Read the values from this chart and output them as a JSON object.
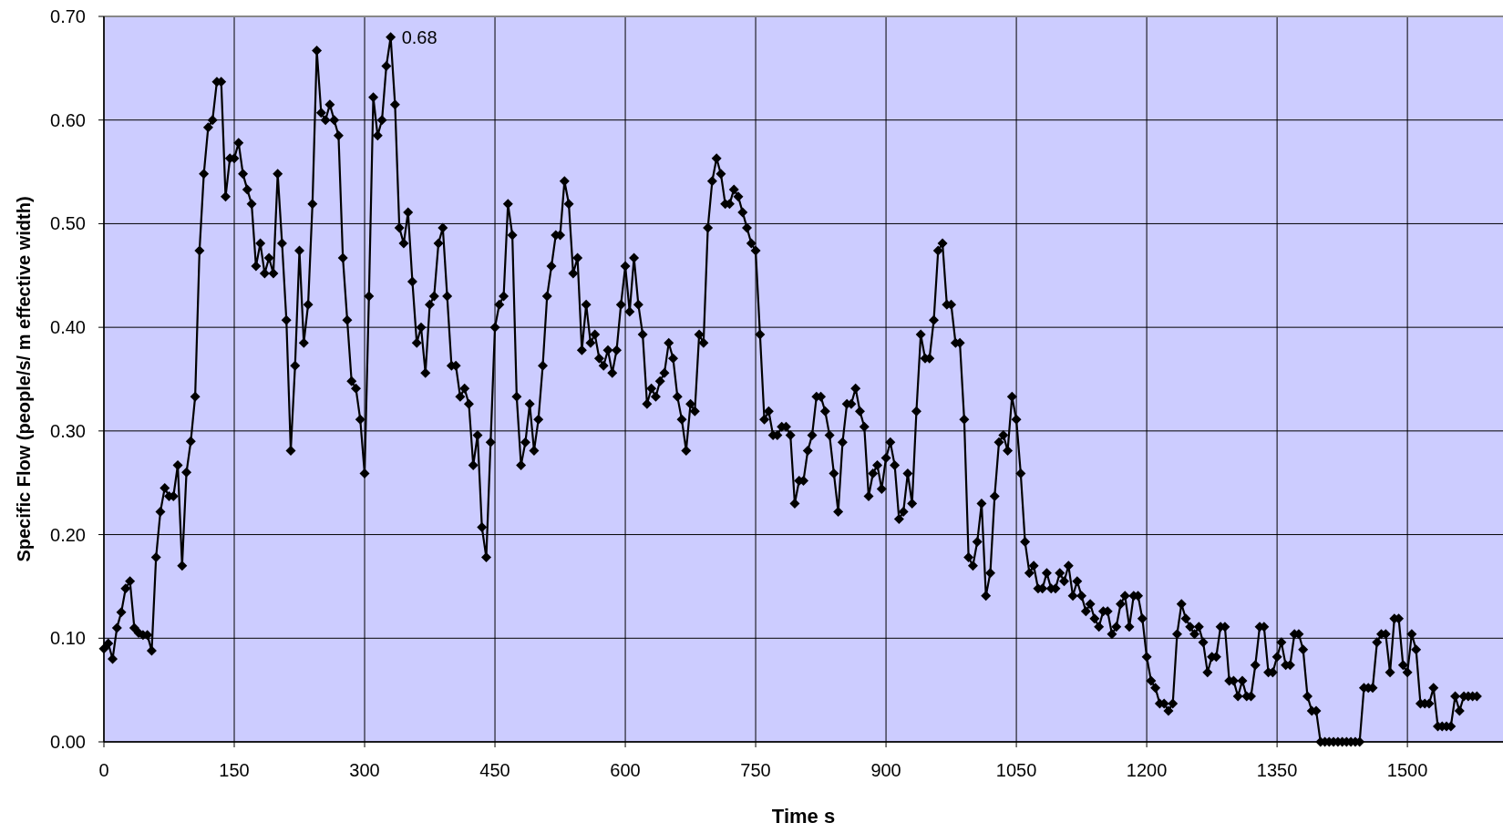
{
  "chart_data": {
    "type": "line",
    "xlabel": "Time s",
    "ylabel": "Specific Flow (people/s/ m effective width)",
    "xlim": [
      0,
      1610
    ],
    "xticks": [
      0,
      150,
      300,
      450,
      600,
      750,
      900,
      1050,
      1200,
      1350,
      1500
    ],
    "ylim": [
      0,
      0.7
    ],
    "yticks": [
      {
        "value": 0,
        "label": "0.00"
      },
      {
        "value": 0.1,
        "label": "0.10"
      },
      {
        "value": 0.2,
        "label": "0.20"
      },
      {
        "value": 0.3,
        "label": "0.30"
      },
      {
        "value": 0.4,
        "label": "0.40"
      },
      {
        "value": 0.5,
        "label": "0.50"
      },
      {
        "value": 0.6,
        "label": "0.60"
      },
      {
        "value": 0.7,
        "label": "0.70"
      }
    ],
    "grid": true,
    "marker": "diamond",
    "line_style": "solid",
    "annotations": [
      {
        "text": "0.68",
        "x": 330,
        "y": 0.68
      }
    ],
    "x": [
      0,
      5,
      10,
      15,
      20,
      25,
      30,
      35,
      40,
      45,
      50,
      55,
      60,
      65,
      70,
      75,
      80,
      85,
      90,
      95,
      100,
      105,
      110,
      115,
      120,
      125,
      130,
      135,
      140,
      145,
      150,
      155,
      160,
      165,
      170,
      175,
      180,
      185,
      190,
      195,
      200,
      205,
      210,
      215,
      220,
      225,
      230,
      235,
      240,
      245,
      250,
      255,
      260,
      265,
      270,
      275,
      280,
      285,
      290,
      295,
      300,
      305,
      310,
      315,
      320,
      325,
      330,
      335,
      340,
      345,
      350,
      355,
      360,
      365,
      370,
      375,
      380,
      385,
      390,
      395,
      400,
      405,
      410,
      415,
      420,
      425,
      430,
      435,
      440,
      445,
      450,
      455,
      460,
      465,
      470,
      475,
      480,
      485,
      490,
      495,
      500,
      505,
      510,
      515,
      520,
      525,
      530,
      535,
      540,
      545,
      550,
      555,
      560,
      565,
      570,
      575,
      580,
      585,
      590,
      595,
      600,
      605,
      610,
      615,
      620,
      625,
      630,
      635,
      640,
      645,
      650,
      655,
      660,
      665,
      670,
      675,
      680,
      685,
      690,
      695,
      700,
      705,
      710,
      715,
      720,
      725,
      730,
      735,
      740,
      745,
      750,
      755,
      760,
      765,
      770,
      775,
      780,
      785,
      790,
      795,
      800,
      805,
      810,
      815,
      820,
      825,
      830,
      835,
      840,
      845,
      850,
      855,
      860,
      865,
      870,
      875,
      880,
      885,
      890,
      895,
      900,
      905,
      910,
      915,
      920,
      925,
      930,
      935,
      940,
      945,
      950,
      955,
      960,
      965,
      970,
      975,
      980,
      985,
      990,
      995,
      1000,
      1005,
      1010,
      1015,
      1020,
      1025,
      1030,
      1035,
      1040,
      1045,
      1050,
      1055,
      1060,
      1065,
      1070,
      1075,
      1080,
      1085,
      1090,
      1095,
      1100,
      1105,
      1110,
      1115,
      1120,
      1125,
      1130,
      1135,
      1140,
      1145,
      1150,
      1155,
      1160,
      1165,
      1170,
      1175,
      1180,
      1185,
      1190,
      1195,
      1200,
      1205,
      1210,
      1215,
      1220,
      1225,
      1230,
      1235,
      1240,
      1245,
      1250,
      1255,
      1260,
      1265,
      1270,
      1275,
      1280,
      1285,
      1290,
      1295,
      1300,
      1305,
      1310,
      1315,
      1320,
      1325,
      1330,
      1335,
      1340,
      1345,
      1350,
      1355,
      1360,
      1365,
      1370,
      1375,
      1380,
      1385,
      1390,
      1395,
      1400,
      1405,
      1410,
      1415,
      1420,
      1425,
      1430,
      1435,
      1440,
      1445,
      1450,
      1455,
      1460,
      1465,
      1470,
      1475,
      1480,
      1485,
      1490,
      1495,
      1500,
      1505,
      1510,
      1515,
      1520,
      1525,
      1530,
      1535,
      1540,
      1545,
      1550,
      1555,
      1560,
      1565,
      1570,
      1575,
      1580
    ],
    "series": [
      {
        "color": "#000000",
        "values": [
          0.09,
          0.095,
          0.08,
          0.11,
          0.125,
          0.148,
          0.155,
          0.11,
          0.105,
          0.103,
          0.103,
          0.088,
          0.178,
          0.222,
          0.245,
          0.237,
          0.237,
          0.267,
          0.17,
          0.26,
          0.29,
          0.333,
          0.474,
          0.548,
          0.593,
          0.6,
          0.637,
          0.637,
          0.526,
          0.563,
          0.563,
          0.578,
          0.548,
          0.533,
          0.519,
          0.459,
          0.481,
          0.452,
          0.467,
          0.452,
          0.548,
          0.481,
          0.407,
          0.281,
          0.363,
          0.474,
          0.385,
          0.422,
          0.519,
          0.667,
          0.607,
          0.6,
          0.615,
          0.6,
          0.585,
          0.467,
          0.407,
          0.348,
          0.341,
          0.311,
          0.259,
          0.43,
          0.622,
          0.585,
          0.6,
          0.652,
          0.68,
          0.615,
          0.496,
          0.481,
          0.511,
          0.444,
          0.385,
          0.4,
          0.356,
          0.422,
          0.43,
          0.481,
          0.496,
          0.43,
          0.363,
          0.363,
          0.333,
          0.341,
          0.326,
          0.267,
          0.296,
          0.207,
          0.178,
          0.289,
          0.4,
          0.422,
          0.43,
          0.519,
          0.489,
          0.333,
          0.267,
          0.289,
          0.326,
          0.281,
          0.311,
          0.363,
          0.43,
          0.459,
          0.489,
          0.489,
          0.541,
          0.519,
          0.452,
          0.467,
          0.378,
          0.422,
          0.385,
          0.393,
          0.37,
          0.363,
          0.378,
          0.356,
          0.378,
          0.422,
          0.459,
          0.415,
          0.467,
          0.422,
          0.393,
          0.326,
          0.341,
          0.333,
          0.348,
          0.356,
          0.385,
          0.37,
          0.333,
          0.311,
          0.281,
          0.326,
          0.319,
          0.393,
          0.385,
          0.496,
          0.541,
          0.563,
          0.548,
          0.519,
          0.519,
          0.533,
          0.526,
          0.511,
          0.496,
          0.481,
          0.474,
          0.393,
          0.311,
          0.319,
          0.296,
          0.296,
          0.304,
          0.304,
          0.296,
          0.23,
          0.252,
          0.252,
          0.281,
          0.296,
          0.333,
          0.333,
          0.319,
          0.296,
          0.259,
          0.222,
          0.289,
          0.326,
          0.326,
          0.341,
          0.319,
          0.304,
          0.237,
          0.259,
          0.267,
          0.244,
          0.274,
          0.289,
          0.267,
          0.215,
          0.222,
          0.259,
          0.23,
          0.319,
          0.393,
          0.37,
          0.37,
          0.407,
          0.474,
          0.481,
          0.422,
          0.422,
          0.385,
          0.385,
          0.311,
          0.178,
          0.17,
          0.193,
          0.23,
          0.141,
          0.163,
          0.237,
          0.289,
          0.296,
          0.281,
          0.333,
          0.311,
          0.259,
          0.193,
          0.163,
          0.17,
          0.148,
          0.148,
          0.163,
          0.148,
          0.148,
          0.163,
          0.155,
          0.17,
          0.141,
          0.155,
          0.141,
          0.126,
          0.133,
          0.119,
          0.111,
          0.126,
          0.126,
          0.104,
          0.111,
          0.133,
          0.141,
          0.111,
          0.141,
          0.141,
          0.119,
          0.082,
          0.059,
          0.052,
          0.037,
          0.037,
          0.03,
          0.037,
          0.104,
          0.133,
          0.119,
          0.111,
          0.104,
          0.111,
          0.096,
          0.067,
          0.082,
          0.082,
          0.111,
          0.111,
          0.059,
          0.059,
          0.044,
          0.059,
          0.044,
          0.044,
          0.074,
          0.111,
          0.111,
          0.067,
          0.067,
          0.082,
          0.096,
          0.074,
          0.074,
          0.104,
          0.104,
          0.089,
          0.044,
          0.03,
          0.03,
          0,
          0,
          0,
          0,
          0,
          0,
          0,
          0,
          0,
          0,
          0.052,
          0.052,
          0.052,
          0.096,
          0.104,
          0.104,
          0.067,
          0.119,
          0.119,
          0.074,
          0.067,
          0.104,
          0.089,
          0.037,
          0.037,
          0.037,
          0.052,
          0.015,
          0.015,
          0.015,
          0.015,
          0.044,
          0.03,
          0.044,
          0.044,
          0.044,
          0.044
        ]
      }
    ]
  }
}
